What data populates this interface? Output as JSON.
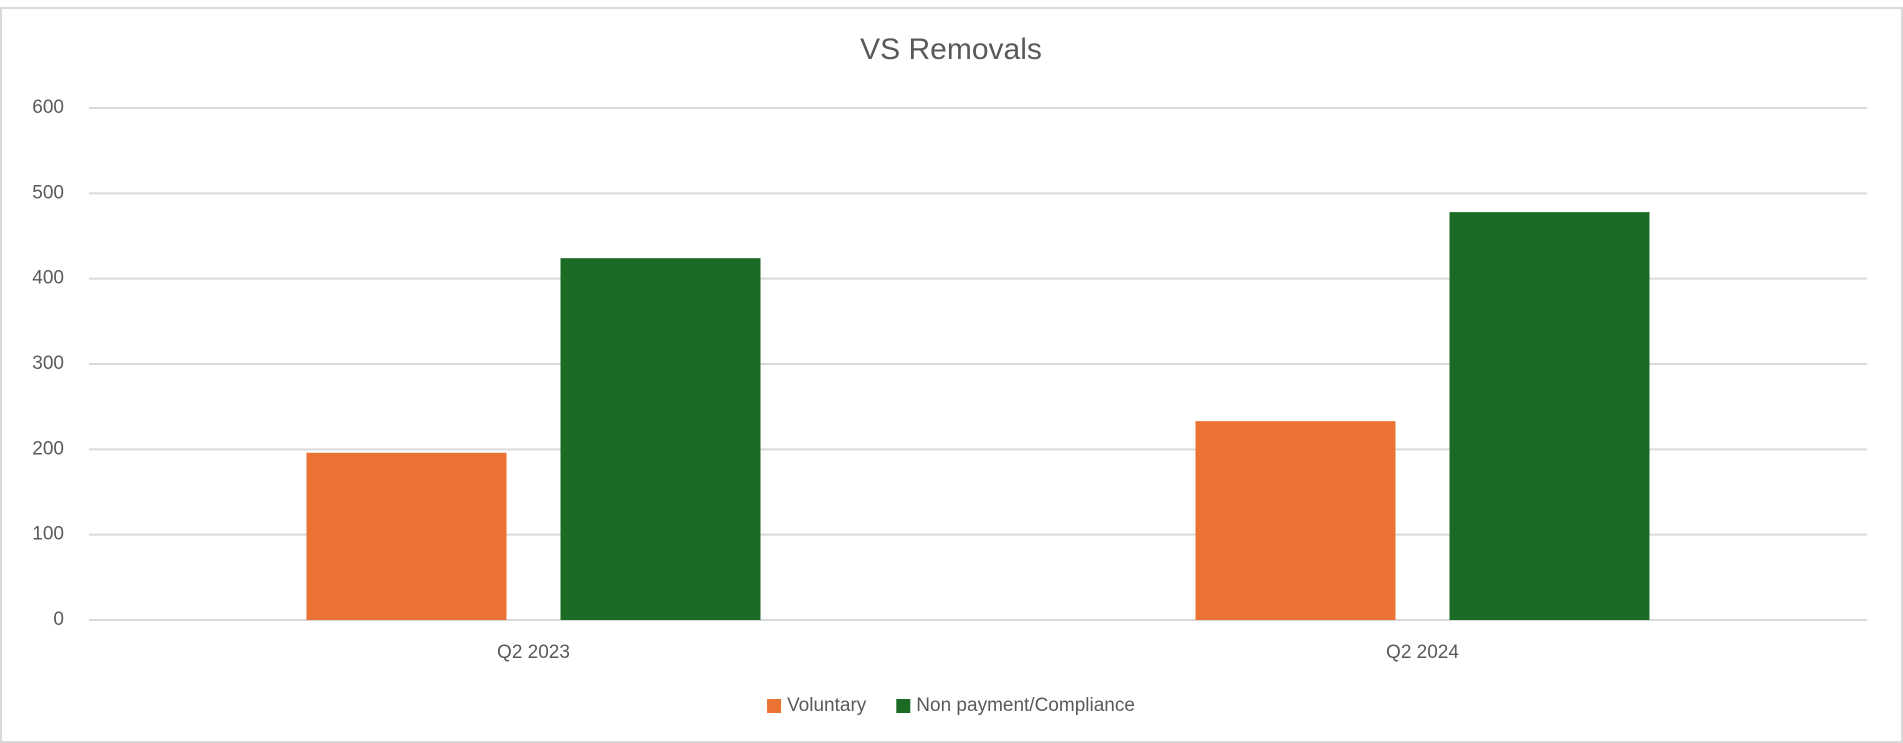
{
  "chart_data": {
    "type": "bar",
    "title": "VS Removals",
    "categories": [
      "Q2 2023",
      "Q2 2024"
    ],
    "series": [
      {
        "name": "Voluntary",
        "color": "#ea7233",
        "values": [
          196,
          233
        ]
      },
      {
        "name": "Non payment/Compliance",
        "color": "#1b6b25",
        "values": [
          424,
          478
        ]
      }
    ],
    "ylim": [
      0,
      600
    ],
    "yticks": [
      0,
      100,
      200,
      300,
      400,
      500,
      600
    ],
    "grid": true,
    "legend": "bottom"
  }
}
